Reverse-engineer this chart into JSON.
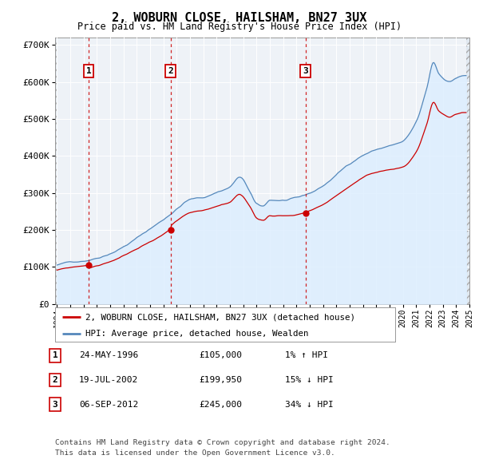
{
  "title": "2, WOBURN CLOSE, HAILSHAM, BN27 3UX",
  "subtitle": "Price paid vs. HM Land Registry's House Price Index (HPI)",
  "sale_dates_decimal": [
    1996.37,
    2002.54,
    2012.67
  ],
  "sale_prices": [
    105000,
    199950,
    245000
  ],
  "sale_labels": [
    "1",
    "2",
    "3"
  ],
  "sale_info": [
    {
      "num": "1",
      "date": "24-MAY-1996",
      "price": "£105,000",
      "pct": "1% ↑ HPI"
    },
    {
      "num": "2",
      "date": "19-JUL-2002",
      "price": "£199,950",
      "pct": "15% ↓ HPI"
    },
    {
      "num": "3",
      "date": "06-SEP-2012",
      "price": "£245,000",
      "pct": "34% ↓ HPI"
    }
  ],
  "legend_house": "2, WOBURN CLOSE, HAILSHAM, BN27 3UX (detached house)",
  "legend_hpi": "HPI: Average price, detached house, Wealden",
  "footnote1": "Contains HM Land Registry data © Crown copyright and database right 2024.",
  "footnote2": "This data is licensed under the Open Government Licence v3.0.",
  "house_color": "#cc0000",
  "hpi_color": "#5588bb",
  "hpi_fill_color": "#ddeeff",
  "background_color": "#ffffff",
  "plot_bg_color": "#eef2f7",
  "ylim": [
    0,
    720000
  ],
  "yticks": [
    0,
    100000,
    200000,
    300000,
    400000,
    500000,
    600000,
    700000
  ],
  "xmin": 1994.0,
  "xmax": 2025.0
}
